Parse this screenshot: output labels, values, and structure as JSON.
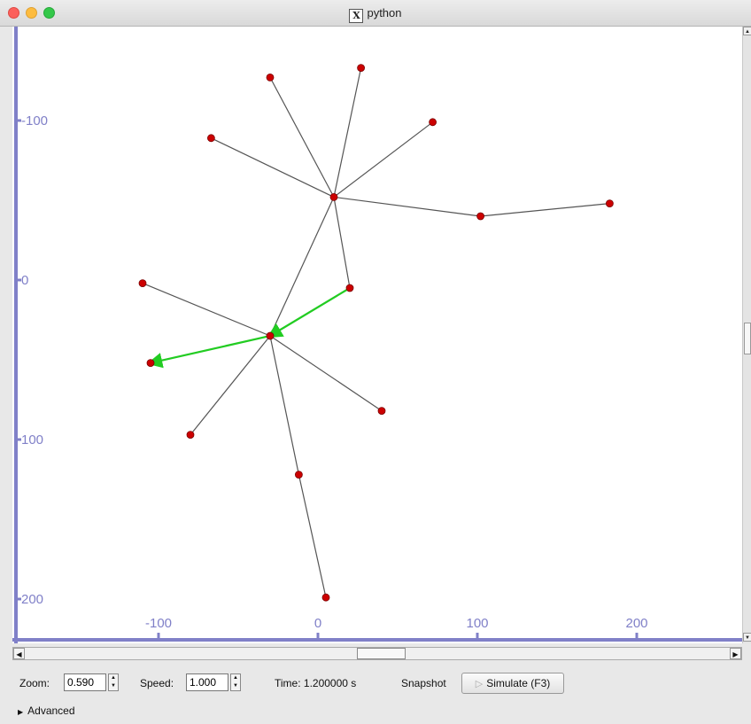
{
  "window": {
    "title": "python"
  },
  "axes": {
    "color": "#8080c8",
    "x_ticks": [
      {
        "value": -100,
        "label": "-100"
      },
      {
        "value": 0,
        "label": "0"
      },
      {
        "value": 100,
        "label": "100"
      },
      {
        "value": 200,
        "label": "200"
      }
    ],
    "y_ticks": [
      {
        "value": -100,
        "label": "-100"
      },
      {
        "value": 0,
        "label": "0"
      },
      {
        "value": 100,
        "label": "100"
      },
      {
        "value": 200,
        "label": "200"
      }
    ]
  },
  "graph": {
    "node_color": "#cc0000",
    "edge_color": "#555555",
    "packet_color": "#22cc22",
    "nodes": [
      {
        "id": 0,
        "x": -30,
        "y": 35
      },
      {
        "id": 1,
        "x": 20,
        "y": 5
      },
      {
        "id": 2,
        "x": 10,
        "y": -52
      },
      {
        "id": 3,
        "x": -105,
        "y": 52
      },
      {
        "id": 4,
        "x": -110,
        "y": 2
      },
      {
        "id": 5,
        "x": 40,
        "y": 82
      },
      {
        "id": 6,
        "x": -80,
        "y": 97
      },
      {
        "id": 7,
        "x": -12,
        "y": 122
      },
      {
        "id": 8,
        "x": 5,
        "y": 199
      },
      {
        "id": 9,
        "x": -30,
        "y": -127
      },
      {
        "id": 10,
        "x": 27,
        "y": -133
      },
      {
        "id": 11,
        "x": 72,
        "y": -99
      },
      {
        "id": 12,
        "x": -67,
        "y": -89
      },
      {
        "id": 13,
        "x": 102,
        "y": -40
      },
      {
        "id": 14,
        "x": 183,
        "y": -48
      }
    ],
    "edges": [
      [
        0,
        1
      ],
      [
        0,
        2
      ],
      [
        0,
        3
      ],
      [
        0,
        4
      ],
      [
        0,
        5
      ],
      [
        0,
        6
      ],
      [
        0,
        7
      ],
      [
        7,
        8
      ],
      [
        2,
        9
      ],
      [
        2,
        10
      ],
      [
        2,
        11
      ],
      [
        2,
        12
      ],
      [
        2,
        13
      ],
      [
        13,
        14
      ],
      [
        2,
        1
      ]
    ],
    "packets": [
      {
        "from": 1,
        "to": 0
      },
      {
        "from": 0,
        "to": 3
      }
    ]
  },
  "controls": {
    "zoom_label": "Zoom:",
    "zoom_value": "0.590",
    "speed_label": "Speed:",
    "speed_value": "1.000",
    "time_text": "Time: 1.200000 s",
    "snapshot_label": "Snapshot",
    "simulate_label": "Simulate (F3)",
    "advanced_label": "Advanced"
  }
}
